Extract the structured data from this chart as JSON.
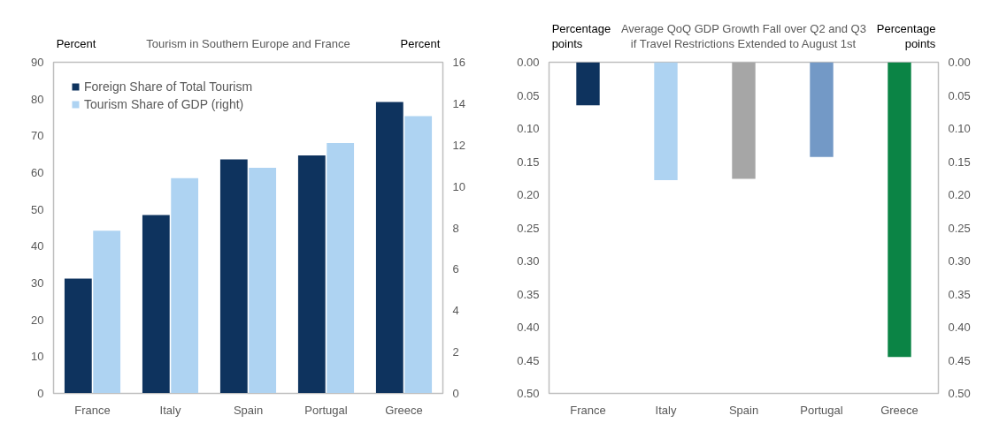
{
  "chart_data": [
    {
      "type": "bar",
      "title": "Tourism in Southern Europe and France",
      "ylabel": "Percent",
      "y2label": "Percent",
      "categories": [
        "France",
        "Italy",
        "Spain",
        "Portugal",
        "Greece"
      ],
      "series": [
        {
          "name": "Foreign Share of Total Tourism",
          "color": "#0e335e",
          "values": [
            31.2,
            48.5,
            63.6,
            64.7,
            79.2
          ]
        },
        {
          "name": "Tourism Share of GDP (right)",
          "color": "#aed3f2",
          "values": [
            7.86,
            10.4,
            10.9,
            12.1,
            13.4
          ],
          "axis": "y2"
        }
      ],
      "ylim": [
        0,
        90
      ],
      "yticks": [
        0,
        10,
        20,
        30,
        40,
        50,
        60,
        70,
        80,
        90
      ],
      "y2lim": [
        0,
        16
      ],
      "y2ticks": [
        0,
        2,
        4,
        6,
        8,
        10,
        12,
        14,
        16
      ],
      "legend": "top left",
      "grid": false
    },
    {
      "type": "bar",
      "title": "Average QoQ GDP Growth Fall over Q2 and Q3\nif Travel Restrictions Extended to August 1st",
      "ylabel": "Percentage\npoints",
      "y2label": "Percentage\npoints",
      "categories": [
        "France",
        "Italy",
        "Spain",
        "Portugal",
        "Greece"
      ],
      "values": [
        0.065,
        0.178,
        0.176,
        0.143,
        0.445
      ],
      "colors": [
        "#0e335e",
        "#aed3f2",
        "#a6a6a6",
        "#7399c6",
        "#0b8445"
      ],
      "ylim": [
        0.5,
        0
      ],
      "yticks": [
        {
          "value": 0,
          "label": "0.00"
        },
        {
          "value": 0.05,
          "label": "0.05"
        },
        {
          "value": 0.1,
          "label": "0.10"
        },
        {
          "value": 0.15,
          "label": "0.15"
        },
        {
          "value": 0.2,
          "label": "0.20"
        },
        {
          "value": 0.25,
          "label": "0.25"
        },
        {
          "value": 0.3,
          "label": "0.30"
        },
        {
          "value": 0.35,
          "label": "0.35"
        },
        {
          "value": 0.4,
          "label": "0.40"
        },
        {
          "value": 0.45,
          "label": "0.45"
        },
        {
          "value": 0.5,
          "label": "0.50"
        }
      ],
      "y2lim": [
        0.5,
        0
      ],
      "y2ticks": [
        {
          "value": 0,
          "label": "0.00"
        },
        {
          "value": 0.05,
          "label": "0.05"
        },
        {
          "value": 0.1,
          "label": "0.10"
        },
        {
          "value": 0.15,
          "label": "0.15"
        },
        {
          "value": 0.2,
          "label": "0.20"
        },
        {
          "value": 0.25,
          "label": "0.25"
        },
        {
          "value": 0.3,
          "label": "0.30"
        },
        {
          "value": 0.35,
          "label": "0.35"
        },
        {
          "value": 0.4,
          "label": "0.40"
        },
        {
          "value": 0.45,
          "label": "0.45"
        },
        {
          "value": 0.5,
          "label": "0.50"
        }
      ],
      "grid": false
    }
  ]
}
